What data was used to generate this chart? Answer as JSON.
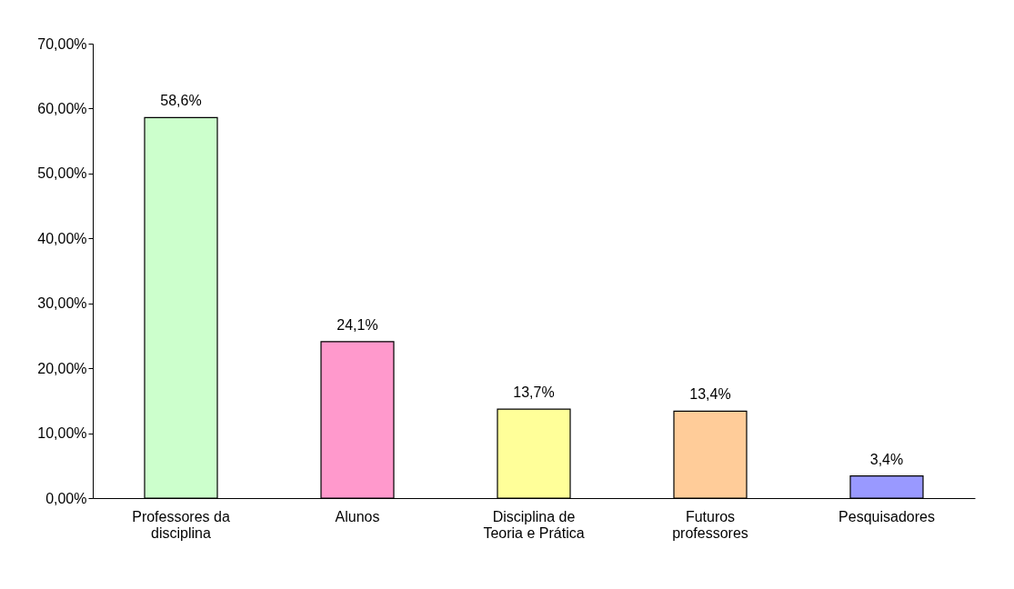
{
  "chart_data": {
    "type": "bar",
    "categories": [
      "Professores da disciplina",
      "Alunos",
      "Disciplina de Teoria e Prática",
      "Futuros professores",
      "Pesquisadores"
    ],
    "values": [
      58.6,
      24.1,
      13.7,
      13.4,
      3.4
    ],
    "colors": [
      "#ccffcc",
      "#ff99cc",
      "#ffff99",
      "#ffcc99",
      "#9999ff"
    ],
    "value_labels": [
      "58,6%",
      "24,1%",
      "13,7%",
      "13,4%",
      "3,4%"
    ],
    "ylim": [
      0,
      70
    ],
    "yticks": [
      {
        "value": 0,
        "label": "0,00%"
      },
      {
        "value": 10,
        "label": "10,00%"
      },
      {
        "value": 20,
        "label": "20,00%"
      },
      {
        "value": 30,
        "label": "30,00%"
      },
      {
        "value": 40,
        "label": "40,00%"
      },
      {
        "value": 50,
        "label": "50,00%"
      },
      {
        "value": 60,
        "label": "60,00%"
      },
      {
        "value": 70,
        "label": "70,00%"
      }
    ],
    "grid": false
  }
}
